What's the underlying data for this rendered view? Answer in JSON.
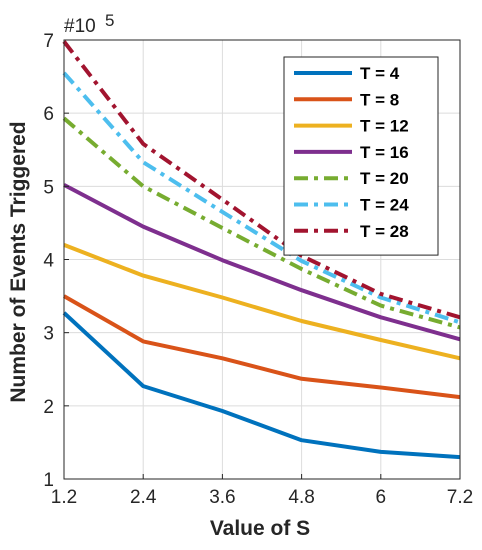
{
  "chart_data": {
    "type": "line",
    "title": "",
    "xlabel": "Value of S",
    "ylabel": "Number of Events Triggered",
    "y_exponent_label": "#10",
    "y_exponent_power": "5",
    "x": [
      1.2,
      2.4,
      3.6,
      4.8,
      6,
      7.2
    ],
    "x_tick_labels": [
      "1.2",
      "2.4",
      "3.6",
      "4.8",
      "6",
      "7.2"
    ],
    "xlim": [
      1.2,
      7.2
    ],
    "ylim": [
      1,
      7
    ],
    "y_tick_values": [
      1,
      2,
      3,
      4,
      5,
      6,
      7
    ],
    "y_tick_labels": [
      "1",
      "2",
      "3",
      "4",
      "5",
      "6",
      "7"
    ],
    "grid": true,
    "legend_position": "top-right",
    "series": [
      {
        "name": "T = 4",
        "color": "#0072BD",
        "style": "solid",
        "values": [
          3.27,
          2.27,
          1.93,
          1.53,
          1.37,
          1.3
        ]
      },
      {
        "name": "T = 8",
        "color": "#D95319",
        "style": "solid",
        "values": [
          3.5,
          2.88,
          2.65,
          2.37,
          2.25,
          2.12
        ]
      },
      {
        "name": "T = 12",
        "color": "#EDB120",
        "style": "solid",
        "values": [
          4.2,
          3.78,
          3.48,
          3.16,
          2.9,
          2.65
        ]
      },
      {
        "name": "T = 16",
        "color": "#7E2F8E",
        "style": "solid",
        "values": [
          5.02,
          4.45,
          3.99,
          3.58,
          3.21,
          2.91
        ]
      },
      {
        "name": "T = 20",
        "color": "#77AC30",
        "style": "dashdot",
        "values": [
          5.93,
          5.0,
          4.43,
          3.87,
          3.37,
          3.07
        ]
      },
      {
        "name": "T = 24",
        "color": "#4DBEEE",
        "style": "dashdot",
        "values": [
          6.55,
          5.33,
          4.65,
          3.98,
          3.48,
          3.14
        ]
      },
      {
        "name": "T = 28",
        "color": "#A2142F",
        "style": "dashdot",
        "values": [
          6.98,
          5.58,
          4.82,
          4.05,
          3.53,
          3.21
        ]
      }
    ]
  }
}
